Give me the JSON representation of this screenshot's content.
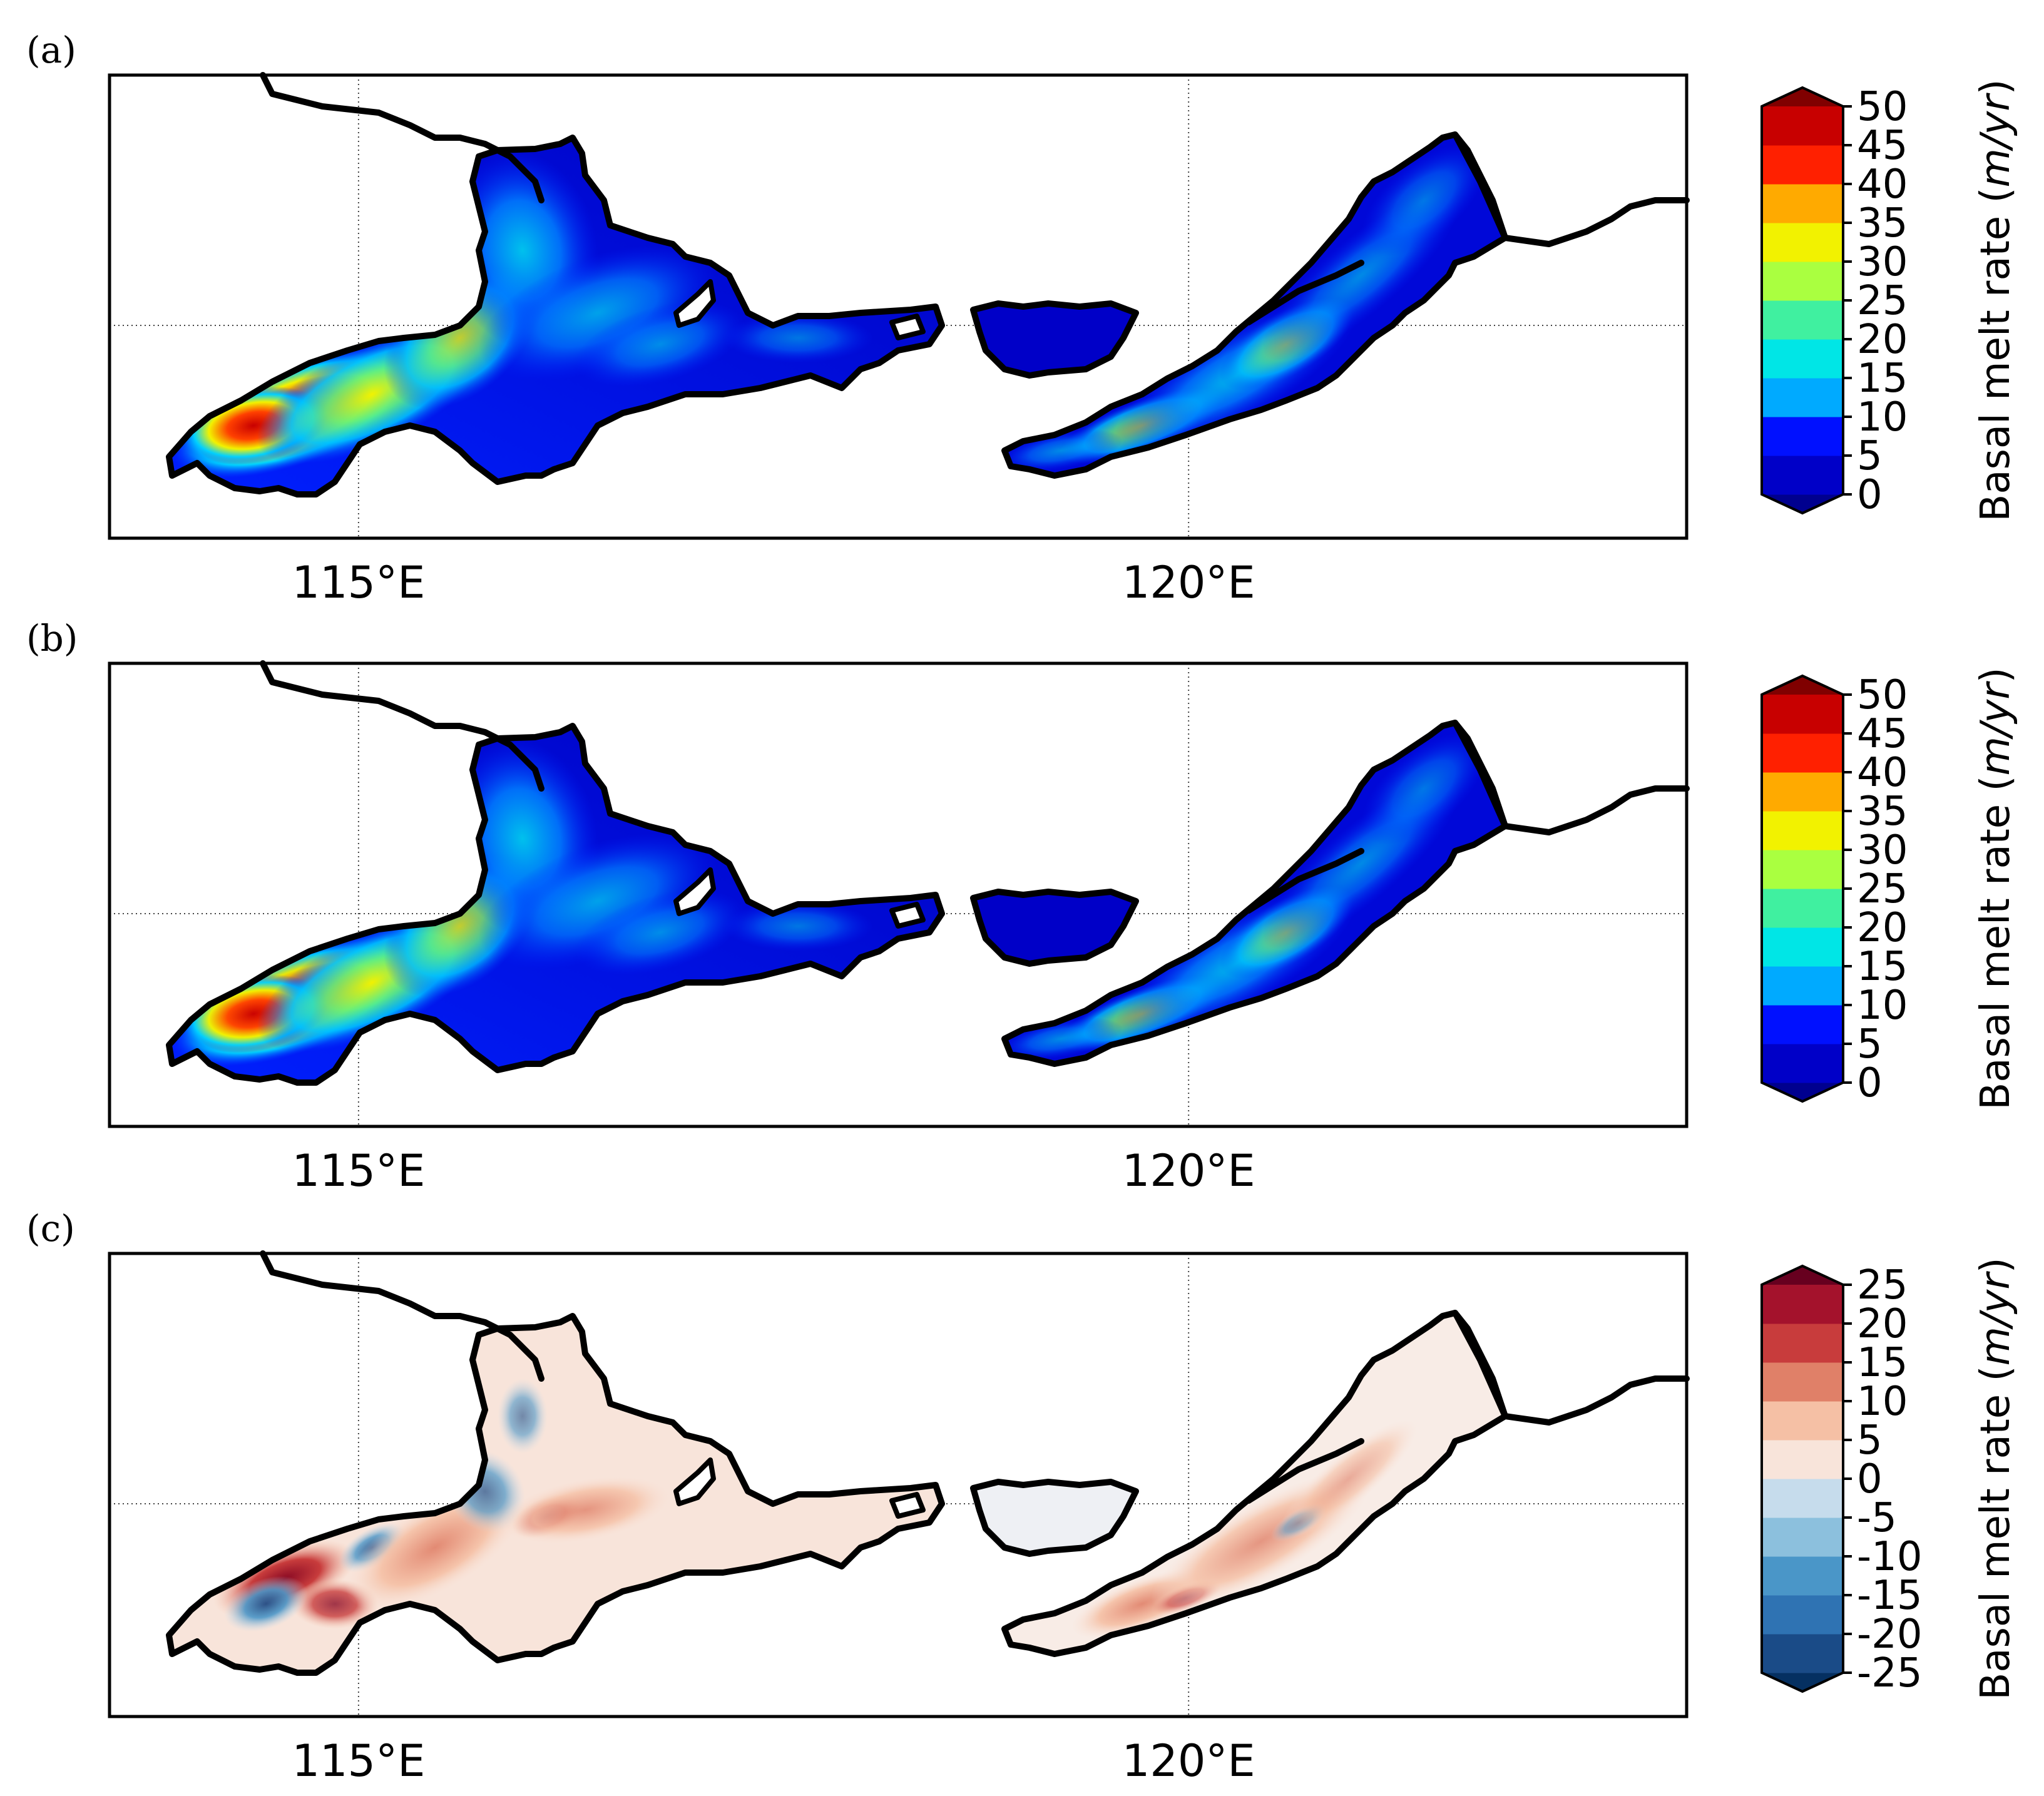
{
  "chart_data": [
    {
      "type": "heatmap",
      "panel_label": "(a)",
      "xtick_labels": [
        "115°E",
        "120°E"
      ],
      "x_ticks": [
        115,
        120
      ],
      "xlim": [
        113.5,
        123.0
      ],
      "colorbar": {
        "label_main": "Basal melt rate (",
        "label_unit": "m/yr",
        "label_end": ")",
        "levels": [
          0,
          5,
          10,
          15,
          20,
          25,
          30,
          35,
          40,
          45,
          50
        ],
        "tick_labels": [
          "0",
          "5",
          "10",
          "15",
          "20",
          "25",
          "30",
          "35",
          "40",
          "45",
          "50"
        ],
        "extend": "both",
        "colors": [
          "#00008f",
          "#0000c8",
          "#0010ff",
          "#0060ff",
          "#00aaff",
          "#00e6e6",
          "#40f0a0",
          "#80ff60",
          "#aaff40",
          "#f2f200",
          "#ffaa00",
          "#ff6000",
          "#ff2000",
          "#c80000",
          "#800000"
        ]
      }
    },
    {
      "type": "heatmap",
      "panel_label": "(b)",
      "xtick_labels": [
        "115°E",
        "120°E"
      ],
      "x_ticks": [
        115,
        120
      ],
      "xlim": [
        113.5,
        123.0
      ],
      "colorbar": {
        "label_main": "Basal melt rate (",
        "label_unit": "m/yr",
        "label_end": ")",
        "levels": [
          0,
          5,
          10,
          15,
          20,
          25,
          30,
          35,
          40,
          45,
          50
        ],
        "tick_labels": [
          "0",
          "5",
          "10",
          "15",
          "20",
          "25",
          "30",
          "35",
          "40",
          "45",
          "50"
        ],
        "extend": "both",
        "colors": [
          "#00008f",
          "#0000c8",
          "#0010ff",
          "#0060ff",
          "#00aaff",
          "#00e6e6",
          "#40f0a0",
          "#80ff60",
          "#aaff40",
          "#f2f200",
          "#ffaa00",
          "#ff6000",
          "#ff2000",
          "#c80000",
          "#800000"
        ]
      }
    },
    {
      "type": "heatmap",
      "panel_label": "(c)",
      "xtick_labels": [
        "115°E",
        "120°E"
      ],
      "x_ticks": [
        115,
        120
      ],
      "xlim": [
        113.5,
        123.0
      ],
      "colorbar": {
        "label_main": "Basal melt rate (",
        "label_unit": "m/yr",
        "label_end": ")",
        "levels": [
          -25,
          -20,
          -15,
          -10,
          -5,
          0,
          5,
          10,
          15,
          20,
          25
        ],
        "tick_labels": [
          "-25",
          "-20",
          "-15",
          "-10",
          "-5",
          "0",
          "5",
          "10",
          "15",
          "20",
          "25"
        ],
        "extend": "both",
        "colors": [
          "#053061",
          "#1a4b87",
          "#2f73b3",
          "#4a96c8",
          "#8cc0dd",
          "#c6dcec",
          "#e8eef4",
          "#f8e4da",
          "#f5c0a5",
          "#e08068",
          "#c83c3c",
          "#a4122c",
          "#67001f"
        ]
      }
    }
  ]
}
